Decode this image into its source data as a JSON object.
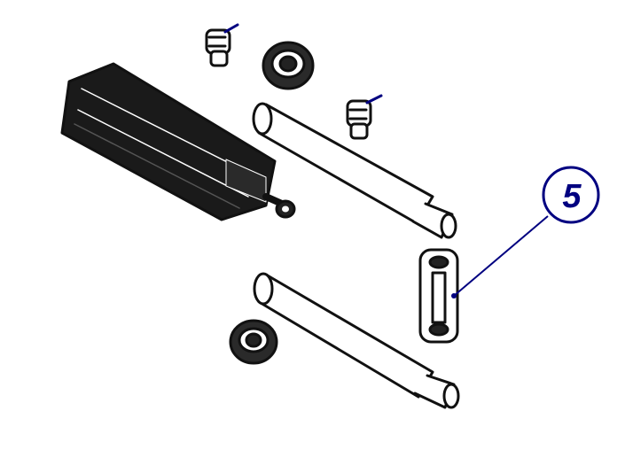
{
  "diagram": {
    "callouts": [
      {
        "label": "5",
        "target": "connecting-link"
      }
    ],
    "colors": {
      "line": "#111111",
      "callout": "#000080",
      "background": "#ffffff"
    },
    "parts": [
      "air-cylinder",
      "elbow-fitting",
      "nut",
      "elbow-fitting",
      "pin",
      "connecting-link",
      "nut",
      "pin"
    ]
  }
}
